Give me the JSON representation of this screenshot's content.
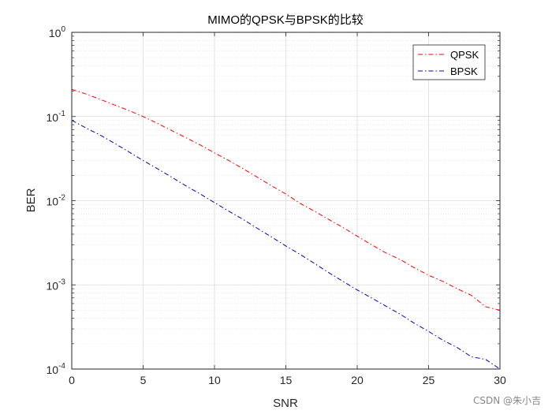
{
  "chart_data": {
    "type": "line",
    "title": "MIMO的QPSK与BPSK的比较",
    "xlabel": "SNR",
    "ylabel": "BER",
    "xlim": [
      0,
      30
    ],
    "ylim_exp": [
      -4,
      0
    ],
    "yscale": "log",
    "grid": true,
    "minor_grid": true,
    "legend_position": "top-right",
    "xticks": [
      0,
      5,
      10,
      15,
      20,
      25,
      30
    ],
    "yticks": [
      {
        "base": "10",
        "exp": "0"
      },
      {
        "base": "10",
        "exp": "-1"
      },
      {
        "base": "10",
        "exp": "-2"
      },
      {
        "base": "10",
        "exp": "-3"
      },
      {
        "base": "10",
        "exp": "-4"
      }
    ],
    "x": [
      0,
      1,
      2,
      3,
      4,
      5,
      6,
      7,
      8,
      9,
      10,
      11,
      12,
      13,
      14,
      15,
      16,
      17,
      18,
      19,
      20,
      21,
      22,
      23,
      24,
      25,
      26,
      27,
      28,
      29,
      30
    ],
    "series": [
      {
        "name": "QPSK",
        "color": "#ff0000",
        "style": "dash-dot",
        "values": [
          0.21,
          0.185,
          0.16,
          0.137,
          0.118,
          0.1,
          0.083,
          0.068,
          0.056,
          0.046,
          0.037,
          0.03,
          0.024,
          0.019,
          0.015,
          0.012,
          0.0093,
          0.0075,
          0.006,
          0.0048,
          0.0038,
          0.003,
          0.0024,
          0.002,
          0.0016,
          0.0013,
          0.0011,
          0.0009,
          0.00075,
          0.00055,
          0.0005
        ]
      },
      {
        "name": "BPSK",
        "color": "#0000cc",
        "style": "dash-dot",
        "values": [
          0.09,
          0.073,
          0.06,
          0.048,
          0.038,
          0.03,
          0.024,
          0.019,
          0.015,
          0.012,
          0.0095,
          0.0075,
          0.006,
          0.0047,
          0.0037,
          0.0029,
          0.0023,
          0.0018,
          0.0014,
          0.0011,
          0.00087,
          0.0007,
          0.00056,
          0.00045,
          0.00035,
          0.00028,
          0.00022,
          0.00018,
          0.00014,
          0.00013,
          0.0001
        ]
      }
    ]
  },
  "watermark": "CSDN @朱小吉"
}
